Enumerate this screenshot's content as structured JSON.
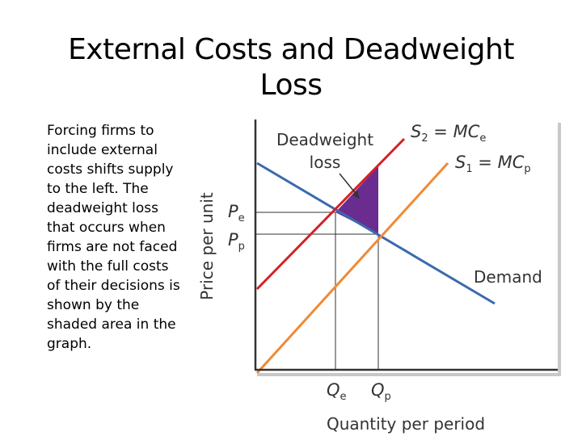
{
  "slide": {
    "title_line1": "External Costs and Deadweight",
    "title_line2": "Loss",
    "body": "Forcing firms to include external costs shifts supply to the left. The deadweight loss that occurs when firms are not faced with the full costs of their decisions is shown by the shaded area in the graph."
  },
  "diagram": {
    "y_axis_label": "Price per unit",
    "x_axis_label": "Quantity per period",
    "deadweight_label_line1": "Deadweight",
    "deadweight_label_line2": "loss",
    "s2": {
      "sym": "S",
      "sub": "2",
      "eq": " = MC",
      "eq_sub": "e"
    },
    "s1": {
      "sym": "S",
      "sub": "1",
      "eq": " = MC",
      "eq_sub": "p"
    },
    "demand_label": "Demand",
    "pe": {
      "sym": "P",
      "sub": "e"
    },
    "pp": {
      "sym": "P",
      "sub": "p"
    },
    "qe": {
      "sym": "Q",
      "sub": "e"
    },
    "qp": {
      "sym": "Q",
      "sub": "p"
    },
    "colors": {
      "s2_line": "#d42026",
      "s1_line": "#f08a35",
      "demand_line": "#3a6aae",
      "shaded_area": "#6a2c8e"
    }
  }
}
